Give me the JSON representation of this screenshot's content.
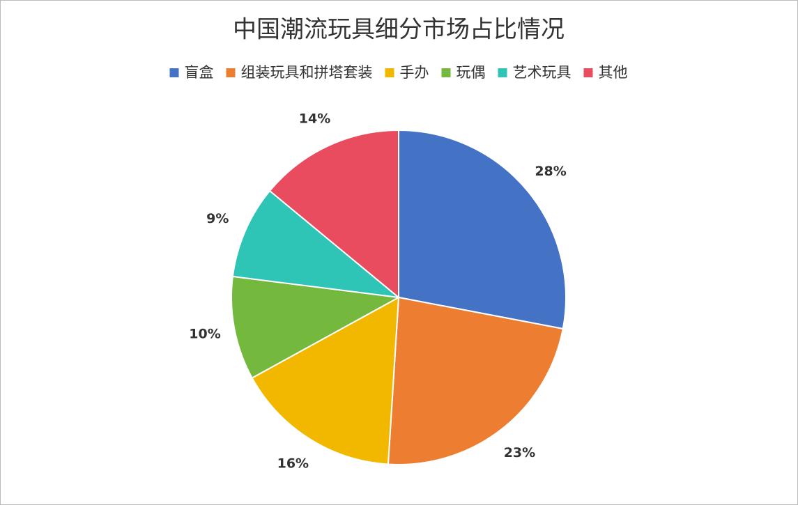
{
  "chart_data": {
    "type": "pie",
    "title": "中国潮流玩具细分市场占比情况",
    "categories": [
      "盲盒",
      "组装玩具和拼塔套装",
      "手办",
      "玩偶",
      "艺术玩具",
      "其他"
    ],
    "values": [
      28,
      23,
      16,
      10,
      9,
      14
    ],
    "value_labels": [
      "28%",
      "23%",
      "16%",
      "10%",
      "9%",
      "14%"
    ],
    "colors": [
      "#4472c4",
      "#ed7d31",
      "#f2b800",
      "#74b83e",
      "#2ec4b6",
      "#e84c5e"
    ],
    "legend": "top"
  }
}
